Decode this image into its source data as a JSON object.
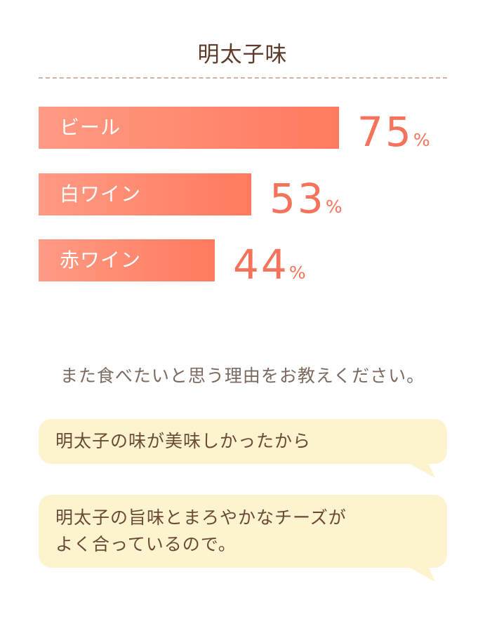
{
  "title": "明太子味",
  "chart_data": {
    "type": "bar",
    "orientation": "horizontal",
    "title": "明太子味",
    "categories": [
      "ビール",
      "白ワイン",
      "赤ワイン"
    ],
    "values": [
      75,
      53,
      44
    ],
    "unit": "%",
    "xlim": [
      0,
      100
    ],
    "grid": false,
    "colors": {
      "bar_start": "#ff9a84",
      "bar_end": "#ff7a5e",
      "value_text": "#f4735a"
    }
  },
  "question": "また食べたいと思う理由をお教えください。",
  "answers": [
    {
      "text": "明太子の味が美味しかったから"
    },
    {
      "text": "明太子の旨味とまろやかなチーズが\nよく合っているので。"
    }
  ],
  "colors": {
    "bubble": "#fdf4cf",
    "title": "#5e3a2a",
    "divider": "#c9b3a6"
  }
}
